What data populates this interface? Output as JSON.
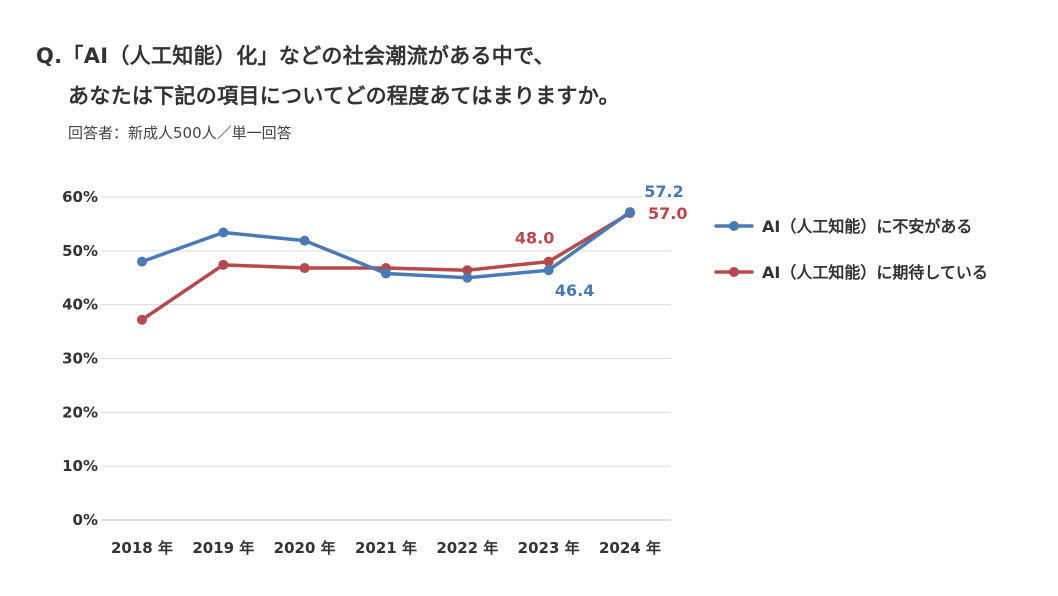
{
  "header": {
    "title_line1": "Q.「AI（人工知能）化」などの社会潮流がある中で、",
    "title_line2": "あなたは下記の項目についてどの程度あてはまりますか。",
    "subtitle": "回答者：新成人500人／単一回答"
  },
  "chart_data": {
    "type": "line",
    "title": "",
    "xlabel": "",
    "ylabel": "",
    "categories": [
      "2018 年",
      "2019 年",
      "2020 年",
      "2021 年",
      "2022 年",
      "2023 年",
      "2024 年"
    ],
    "y_ticks": [
      "0%",
      "10%",
      "20%",
      "30%",
      "40%",
      "50%",
      "60%"
    ],
    "ylim": [
      0,
      60
    ],
    "grid": true,
    "legend_position": "right",
    "series": [
      {
        "name": "AI（人工知能）に不安がある",
        "color": "#4a7ab5",
        "values": [
          48.0,
          53.4,
          51.9,
          45.8,
          45.0,
          46.4,
          57.2
        ],
        "labels": [
          {
            "index": 5,
            "text": "46.4",
            "placement": "below"
          },
          {
            "index": 6,
            "text": "57.2",
            "placement": "above"
          }
        ]
      },
      {
        "name": "AI（人工知能）に期待している",
        "color": "#b5494b",
        "values": [
          37.2,
          47.4,
          46.8,
          46.8,
          46.4,
          48.0,
          57.0
        ],
        "labels": [
          {
            "index": 5,
            "text": "48.0",
            "placement": "above"
          },
          {
            "index": 6,
            "text": "57.0",
            "placement": "right"
          }
        ]
      }
    ]
  }
}
